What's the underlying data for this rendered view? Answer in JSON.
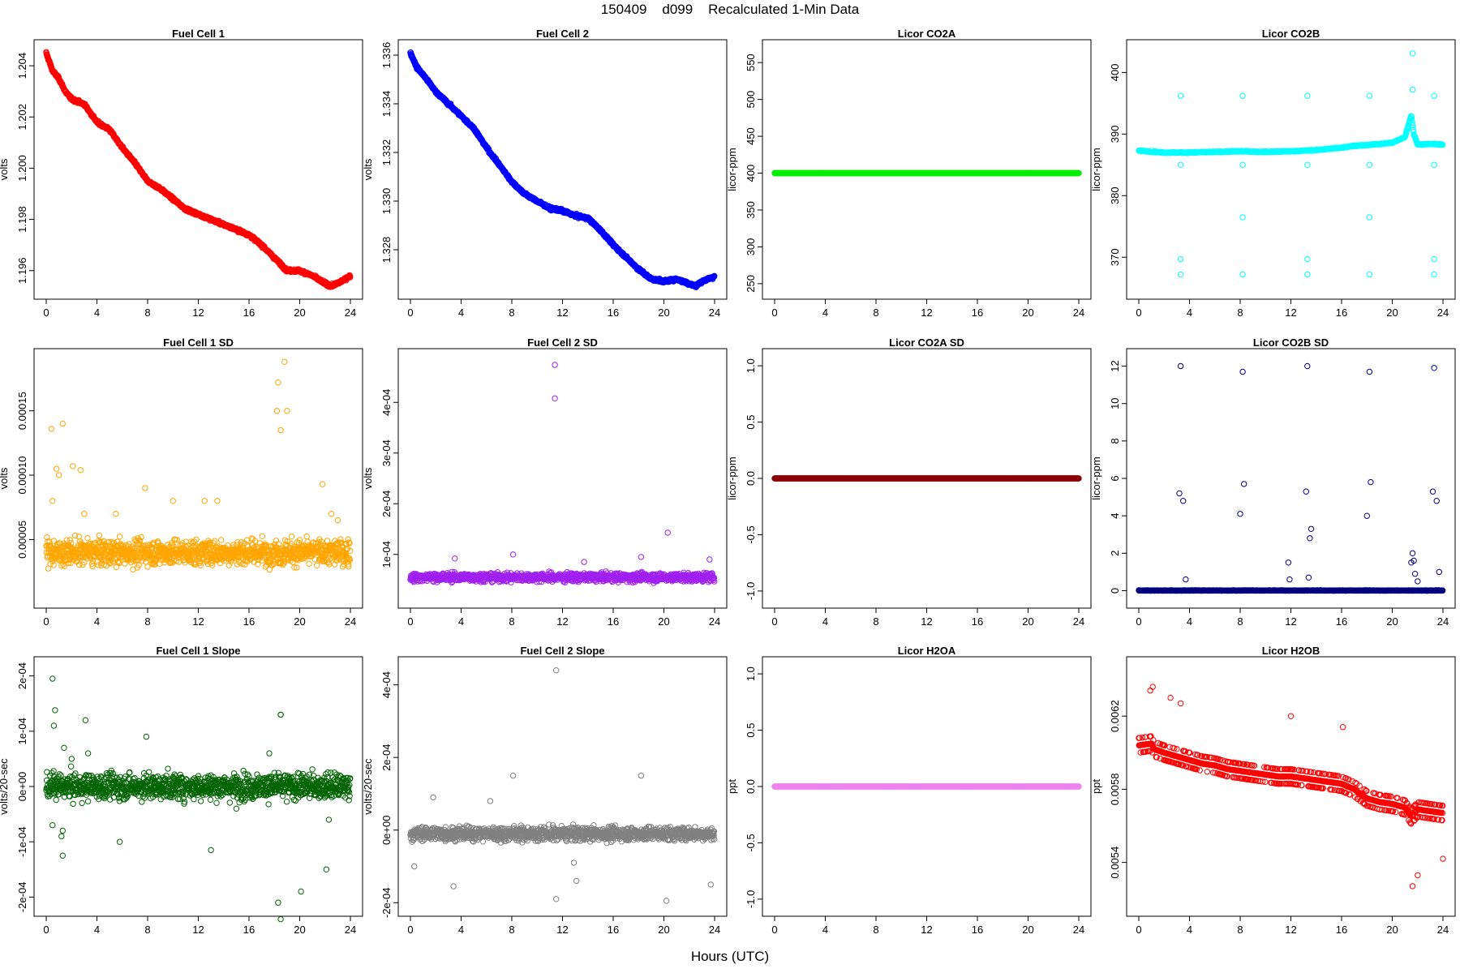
{
  "page": {
    "title": "150409    d099    Recalculated 1-Min Data",
    "x_caption": "Hours (UTC)"
  },
  "chart_data": [
    {
      "type": "scatter",
      "title": "Fuel Cell 1",
      "ylabel": "volts",
      "color": "#ff0000",
      "xlim": [
        0,
        24
      ],
      "ylim": [
        1.1952,
        1.2047
      ],
      "xticks": [
        0,
        4,
        8,
        12,
        16,
        20,
        24
      ],
      "yticks": [
        1.196,
        1.198,
        1.2,
        1.202,
        1.204
      ],
      "yticklabels": [
        "1.196",
        "1.198",
        "1.200",
        "1.202",
        "1.204"
      ],
      "series": [
        {
          "x": [
            0,
            0.5,
            1,
            1.5,
            2,
            3,
            4,
            5,
            6,
            7,
            8,
            9,
            10,
            11,
            12,
            13,
            14,
            15,
            16,
            17,
            18,
            19,
            20,
            21,
            22,
            22.5,
            23,
            24
          ],
          "y": [
            1.2045,
            1.2038,
            1.2035,
            1.203,
            1.2027,
            1.2025,
            1.2018,
            1.2015,
            1.2008,
            1.2002,
            1.1995,
            1.1992,
            1.1988,
            1.1984,
            1.1982,
            1.198,
            1.1978,
            1.1976,
            1.1974,
            1.197,
            1.1965,
            1.196,
            1.196,
            1.1958,
            1.1955,
            1.1954,
            1.1955,
            1.1958
          ]
        }
      ]
    },
    {
      "type": "scatter",
      "title": "Fuel Cell 2",
      "ylabel": "volts",
      "color": "#0000ff",
      "xlim": [
        0,
        24
      ],
      "ylim": [
        1.3263,
        1.3363
      ],
      "xticks": [
        0,
        4,
        8,
        12,
        16,
        20,
        24
      ],
      "yticks": [
        1.328,
        1.33,
        1.332,
        1.334,
        1.336
      ],
      "yticklabels": [
        "1.328",
        "1.330",
        "1.332",
        "1.334",
        "1.336"
      ],
      "series": [
        {
          "x": [
            0,
            0.5,
            1,
            2,
            3,
            4,
            5,
            6,
            7,
            8,
            9,
            10,
            11,
            12,
            13,
            14,
            15,
            16,
            17,
            18,
            19,
            20,
            21,
            22,
            22.5,
            23,
            24
          ],
          "y": [
            1.3361,
            1.3355,
            1.3352,
            1.3345,
            1.334,
            1.3335,
            1.333,
            1.3322,
            1.3315,
            1.3308,
            1.3303,
            1.33,
            1.3297,
            1.3296,
            1.3294,
            1.3293,
            1.3288,
            1.3282,
            1.3277,
            1.3272,
            1.3268,
            1.3267,
            1.3268,
            1.3266,
            1.3265,
            1.3267,
            1.3269
          ]
        }
      ]
    },
    {
      "type": "scatter",
      "title": "Licor CO2A",
      "ylabel": "licor-ppm",
      "color": "#00ee00",
      "xlim": [
        0,
        24
      ],
      "ylim": [
        240,
        570
      ],
      "xticks": [
        0,
        4,
        8,
        12,
        16,
        20,
        24
      ],
      "yticks": [
        250,
        300,
        350,
        400,
        450,
        500,
        550
      ],
      "yticklabels": [
        "250",
        "300",
        "350",
        "400",
        "450",
        "500",
        "550"
      ],
      "series": [
        {
          "x": [
            0,
            24
          ],
          "y": [
            400,
            400
          ]
        }
      ]
    },
    {
      "type": "scatter",
      "title": "Licor CO2B",
      "ylabel": "licor-ppm",
      "color": "#00ffff",
      "xlim": [
        0,
        24
      ],
      "ylim": [
        364.5,
        404
      ],
      "xticks": [
        0,
        4,
        8,
        12,
        16,
        20,
        24
      ],
      "yticks": [
        370,
        380,
        390,
        400
      ],
      "yticklabels": [
        "370",
        "380",
        "390",
        "400"
      ],
      "series": [
        {
          "x": [
            0,
            2,
            4,
            6,
            8,
            10,
            12,
            14,
            16,
            17,
            18,
            19,
            20,
            21,
            21.5,
            21.7,
            22,
            23,
            24
          ],
          "y": [
            387.3,
            387,
            387,
            387.1,
            387.2,
            387.1,
            387.2,
            387.4,
            387.8,
            388.1,
            388.2,
            388.4,
            388.6,
            389.5,
            393,
            390,
            388.3,
            388.4,
            388.3
          ]
        },
        {
          "x": [
            3.3,
            3.3,
            3.3,
            3.3,
            8.2,
            8.2,
            8.2,
            8.2,
            13.3,
            13.3,
            13.3,
            13.3,
            18.2,
            18.2,
            18.2,
            18.2,
            23.3,
            23.3,
            23.3,
            23.3,
            21.6,
            21.6
          ],
          "y": [
            396.2,
            385,
            369.7,
            367.2,
            396.2,
            385,
            376.5,
            367.2,
            396.2,
            385,
            369.7,
            367.2,
            396.2,
            385,
            376.5,
            367.2,
            396.2,
            385,
            369.7,
            367.2,
            397.2,
            403.1
          ]
        }
      ]
    },
    {
      "type": "scatter",
      "title": "Fuel Cell 1 SD",
      "ylabel": "volts",
      "color": "#ffa500",
      "xlim": [
        0,
        24
      ],
      "ylim": [
        3e-06,
        0.000192
      ],
      "xticks": [
        0,
        4,
        8,
        12,
        16,
        20,
        24
      ],
      "yticks": [
        5e-05,
        0.0001,
        0.00015
      ],
      "yticklabels": [
        "0.00005",
        "0.00010",
        "0.00015"
      ],
      "series": [
        {
          "x": [
            0.4,
            1.3,
            0.8,
            2.1,
            2.7,
            1,
            3,
            5.5,
            7.8,
            10,
            12.5,
            13.5,
            18.3,
            18.5,
            18.8,
            18.2,
            19,
            21.8,
            22.5,
            0.5,
            23
          ],
          "y": [
            0.000136,
            0.00014,
            0.000105,
            0.000107,
            0.000104,
            0.0001,
            7e-05,
            7e-05,
            9e-05,
            8e-05,
            8e-05,
            8e-05,
            0.000172,
            0.000135,
            0.000188,
            0.00015,
            0.00015,
            9.3e-05,
            7e-05,
            8e-05,
            6.5e-05
          ]
        }
      ]
    },
    {
      "type": "scatter",
      "title": "Fuel Cell 2 SD",
      "ylabel": "volts",
      "color": "#a020f0",
      "xlim": [
        0,
        24
      ],
      "ylim": [
        1e-05,
        0.00049
      ],
      "xticks": [
        0,
        4,
        8,
        12,
        16,
        20,
        24
      ],
      "yticks": [
        0.0001,
        0.0002,
        0.0003,
        0.0004
      ],
      "yticklabels": [
        "1e-04",
        "2e-04",
        "3e-04",
        "4e-04"
      ],
      "series": [
        {
          "x": [
            11.4,
            11.4,
            20.3,
            3.5,
            8.1,
            13.7,
            18.2,
            23.6
          ],
          "y": [
            0.000474,
            0.000408,
            0.000143,
            9.2e-05,
            0.0001,
            8.5e-05,
            9.5e-05,
            9e-05
          ]
        }
      ]
    },
    {
      "type": "scatter",
      "title": "Licor CO2A SD",
      "ylabel": "licor-ppm",
      "color": "#8b0000",
      "xlim": [
        0,
        24
      ],
      "ylim": [
        -1.08,
        1.08
      ],
      "xticks": [
        0,
        4,
        8,
        12,
        16,
        20,
        24
      ],
      "yticks": [
        -1,
        -0.5,
        0,
        0.5,
        1
      ],
      "yticklabels": [
        "-1.0",
        "-0.5",
        "0.0",
        "0.5",
        "1.0"
      ],
      "series": [
        {
          "x": [
            0,
            24
          ],
          "y": [
            0,
            0
          ]
        }
      ]
    },
    {
      "type": "scatter",
      "title": "Licor CO2B SD",
      "ylabel": "licor-ppm",
      "color": "#000080",
      "xlim": [
        0,
        24
      ],
      "ylim": [
        -0.5,
        12.5
      ],
      "xticks": [
        0,
        4,
        8,
        12,
        16,
        20,
        24
      ],
      "yticks": [
        0,
        2,
        4,
        6,
        8,
        10,
        12
      ],
      "yticklabels": [
        "0",
        "2",
        "4",
        "6",
        "8",
        "10",
        "12"
      ],
      "series": [
        {
          "x": [
            3.3,
            3.2,
            3.5,
            3.7,
            8.2,
            8,
            8.3,
            13.3,
            13.2,
            13.6,
            13.5,
            13.4,
            18.2,
            18,
            18.3,
            23.3,
            23.2,
            23.5,
            11.8,
            11.9,
            21.6,
            21.5,
            21.7,
            21.8,
            22,
            23.7
          ],
          "y": [
            12,
            5.2,
            4.8,
            0.6,
            11.7,
            4.1,
            5.7,
            12,
            5.3,
            3.3,
            2.8,
            0.7,
            11.7,
            4,
            5.8,
            11.9,
            5.3,
            4.8,
            1.5,
            0.6,
            2,
            1.5,
            1.6,
            0.9,
            0.5,
            1
          ]
        }
      ]
    },
    {
      "type": "scatter",
      "title": "Fuel Cell 1 Slope",
      "ylabel": "volts/20-sec",
      "color": "#006400",
      "xlim": [
        0,
        24
      ],
      "ylim": [
        -0.00022,
        0.00022
      ],
      "xticks": [
        0,
        4,
        8,
        12,
        16,
        20,
        24
      ],
      "yticks": [
        -0.0002,
        -0.0001,
        0,
        0.0001,
        0.0002
      ],
      "yticklabels": [
        "-2e-04",
        "-1e-04",
        "0e+00",
        "1e-04",
        "2e-04"
      ],
      "series": [
        {
          "x": [
            0.5,
            0.7,
            0.6,
            1.3,
            1.3,
            3.1,
            5.8,
            7.9,
            18.5,
            18.5,
            18.3,
            18.5,
            20.1,
            22.1,
            13,
            1.4,
            1.2,
            0.5,
            3.3,
            2,
            15,
            22.3,
            17.6
          ],
          "y": [
            0.000195,
            0.000138,
            0.00011,
            -0.000125,
            -8e-05,
            0.00012,
            -0.0001,
            9e-05,
            0.00013,
            0.00013,
            -0.00021,
            -0.00024,
            -0.00019,
            -0.00015,
            -0.000115,
            7e-05,
            -9e-05,
            -7e-05,
            6e-05,
            5e-05,
            -4e-05,
            -6e-05,
            6e-05
          ]
        }
      ]
    },
    {
      "type": "scatter",
      "title": "Fuel Cell 2 Slope",
      "ylabel": "volts/20-sec",
      "color": "#808080",
      "xlim": [
        0,
        24
      ],
      "ylim": [
        -0.000215,
        0.000455
      ],
      "xticks": [
        0,
        4,
        8,
        12,
        16,
        20,
        24
      ],
      "yticks": [
        -0.0002,
        0,
        0.0002,
        0.0004
      ],
      "yticklabels": [
        "-2e-04",
        "0e+00",
        "2e-04",
        "4e-04"
      ],
      "series": [
        {
          "x": [
            11.5,
            11.5,
            8.1,
            18.2,
            3.4,
            20.2,
            23.7,
            13.1,
            0.3,
            12.9,
            6.3,
            1.8
          ],
          "y": [
            0.00044,
            -0.00019,
            0.00015,
            0.00015,
            -0.000155,
            -0.000195,
            -0.00015,
            -0.00014,
            -0.0001,
            -9e-05,
            8e-05,
            9e-05
          ]
        }
      ]
    },
    {
      "type": "scatter",
      "title": "Licor H2OA",
      "ylabel": "ppt",
      "color": "#ee82ee",
      "xlim": [
        0,
        24
      ],
      "ylim": [
        -1.08,
        1.08
      ],
      "xticks": [
        0,
        4,
        8,
        12,
        16,
        20,
        24
      ],
      "yticks": [
        -1,
        -0.5,
        0,
        0.5,
        1
      ],
      "yticklabels": [
        "-1.0",
        "-0.5",
        "0.0",
        "0.5",
        "1.0"
      ],
      "series": [
        {
          "x": [
            0,
            24
          ],
          "y": [
            0,
            0
          ]
        }
      ]
    },
    {
      "type": "scatter",
      "title": "Licor H2OB",
      "ylabel": "ppt",
      "color": "#ff0000",
      "xlim": [
        0,
        24
      ],
      "ylim": [
        0.00515,
        0.00648
      ],
      "xticks": [
        0,
        4,
        8,
        12,
        16,
        20,
        24
      ],
      "yticks": [
        0.0054,
        0.0058,
        0.0062
      ],
      "yticklabels": [
        "0.0054",
        "0.0058",
        "0.0062"
      ],
      "series": [
        {
          "x": [
            0,
            1,
            1.2,
            2,
            3,
            4,
            5,
            6,
            7,
            8,
            9,
            10,
            11,
            12,
            13,
            14,
            15,
            16,
            17,
            18,
            19,
            20,
            21,
            21.5,
            22,
            23,
            24
          ],
          "y": [
            0.00604,
            0.00605,
            0.00602,
            0.006,
            0.00598,
            0.00596,
            0.00594,
            0.00593,
            0.00591,
            0.0059,
            0.00589,
            0.00588,
            0.00587,
            0.00587,
            0.00586,
            0.00585,
            0.00584,
            0.00583,
            0.0058,
            0.00575,
            0.00573,
            0.00572,
            0.0057,
            0.00565,
            0.00569,
            0.00568,
            0.00567
          ]
        },
        {
          "x": [
            1.1,
            0.9,
            2.5,
            3.3,
            12,
            16.1,
            22,
            21.6,
            24
          ],
          "y": [
            0.00636,
            0.00634,
            0.0063,
            0.00627,
            0.0062,
            0.00614,
            0.00533,
            0.00527,
            0.00542
          ]
        }
      ]
    }
  ]
}
